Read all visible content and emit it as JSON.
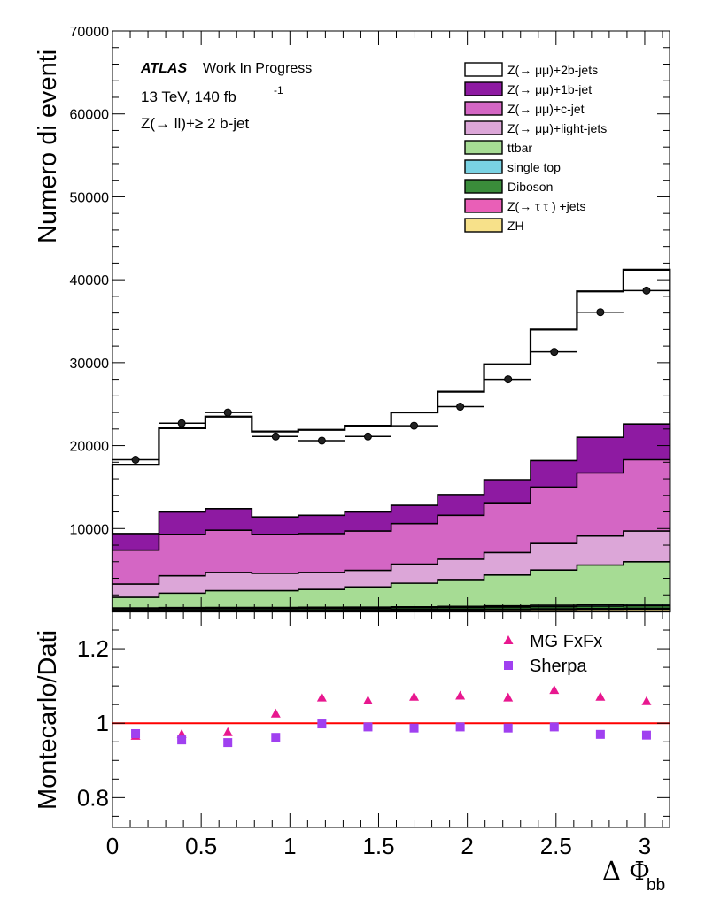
{
  "chart_data": [
    {
      "type": "area",
      "style": "stacked-histogram",
      "ylabel": "Numero di eventi",
      "ylim": [
        0,
        70000
      ],
      "xlim": [
        0,
        3.14
      ],
      "y_ticks": [
        10000,
        20000,
        30000,
        40000,
        50000,
        60000,
        70000
      ],
      "y_tick_labels": [
        "10000",
        "20000",
        "30000",
        "40000",
        "50000",
        "60000",
        "70000"
      ],
      "legend_placement": "top-right",
      "annotations": {
        "atlas": "ATLAS",
        "status": "Work In Progress",
        "energy": "13 TeV, 140 fb",
        "energy_sup": "-1",
        "selection": "Z(→ ll)+≥ 2 b-jet"
      },
      "bin_edges": [
        0,
        0.2618,
        0.5236,
        0.7854,
        1.0472,
        1.309,
        1.5708,
        1.8326,
        2.0944,
        2.3562,
        2.618,
        2.8798,
        3.1416
      ],
      "stack_totals": [
        {
          "name": "ZH",
          "color": "#f7e18a",
          "values": [
            120,
            130,
            135,
            135,
            140,
            150,
            160,
            180,
            200,
            220,
            240,
            260
          ]
        },
        {
          "name": "Z(→ τ τ ) +jets",
          "color": "#e95fb7",
          "values": [
            170,
            185,
            195,
            195,
            200,
            215,
            230,
            255,
            280,
            310,
            340,
            370
          ]
        },
        {
          "name": "Diboson",
          "color": "#3a8c3a",
          "values": [
            330,
            360,
            380,
            380,
            390,
            410,
            440,
            480,
            530,
            580,
            640,
            700
          ]
        },
        {
          "name": "single top",
          "color": "#79d2e3",
          "values": [
            420,
            460,
            480,
            480,
            495,
            520,
            560,
            610,
            670,
            740,
            810,
            880
          ]
        },
        {
          "name": "ttbar",
          "color": "#a6dc94",
          "values": [
            1700,
            2200,
            2500,
            2500,
            2650,
            2950,
            3400,
            3850,
            4400,
            5000,
            5600,
            6000
          ]
        },
        {
          "name": "Z(→ μμ)+light-jets",
          "color": "#dca6d8",
          "values": [
            3300,
            4300,
            4700,
            4600,
            4700,
            4950,
            5700,
            6300,
            7100,
            8200,
            9100,
            9700
          ]
        },
        {
          "name": "Z(→ μμ)+c-jet",
          "color": "#d466c4",
          "values": [
            7400,
            9300,
            9800,
            9300,
            9400,
            9700,
            10600,
            11600,
            13100,
            15000,
            16700,
            18300
          ]
        },
        {
          "name": "Z(→ μμ)+1b-jet",
          "color": "#8e1aa2",
          "values": [
            9400,
            12000,
            12400,
            11400,
            11600,
            12000,
            12800,
            14100,
            15900,
            18200,
            21000,
            22600
          ]
        },
        {
          "name": "Z(→ μμ)+2b-jets",
          "color": "#ffffff",
          "values": [
            17700,
            22100,
            23500,
            21700,
            21900,
            22400,
            24000,
            26500,
            29800,
            34000,
            38600,
            41200
          ]
        }
      ],
      "data_points": {
        "x": [
          0.13,
          0.39,
          0.65,
          0.92,
          1.18,
          1.44,
          1.7,
          1.96,
          2.23,
          2.49,
          2.75,
          3.01
        ],
        "y": [
          18300,
          22700,
          24000,
          21100,
          20600,
          21100,
          22400,
          24700,
          28000,
          31300,
          36100,
          38700
        ]
      }
    },
    {
      "type": "scatter",
      "ylabel": "Montecarlo/Dati",
      "xlabel_main": "Δ Φ",
      "xlabel_sub": "bb",
      "ylim": [
        0.72,
        1.3
      ],
      "xlim": [
        0,
        3.14
      ],
      "y_ticks": [
        0.8,
        1,
        1.2
      ],
      "y_tick_labels": [
        "0.8",
        "1",
        "1.2"
      ],
      "x_ticks": [
        0,
        0.5,
        1,
        1.5,
        2,
        2.5,
        3
      ],
      "x_tick_labels": [
        "0",
        "0.5",
        "1",
        "1.5",
        "2",
        "2.5",
        "3"
      ],
      "reference_line": 1,
      "legend_placement": "top-right",
      "series": [
        {
          "name": "MG FxFx",
          "marker": "triangle",
          "color": "#e8178f",
          "x": [
            0.13,
            0.39,
            0.65,
            0.92,
            1.18,
            1.44,
            1.7,
            1.96,
            2.23,
            2.49,
            2.75,
            3.01
          ],
          "y": [
            0.965,
            0.97,
            0.975,
            1.025,
            1.068,
            1.06,
            1.07,
            1.073,
            1.068,
            1.088,
            1.07,
            1.058
          ]
        },
        {
          "name": "Sherpa",
          "marker": "square",
          "color": "#a040f0",
          "x": [
            0.13,
            0.39,
            0.65,
            0.92,
            1.18,
            1.44,
            1.7,
            1.96,
            2.23,
            2.49,
            2.75,
            3.01
          ],
          "y": [
            0.972,
            0.955,
            0.948,
            0.962,
            0.998,
            0.99,
            0.987,
            0.99,
            0.987,
            0.99,
            0.97,
            0.968
          ]
        }
      ]
    }
  ]
}
